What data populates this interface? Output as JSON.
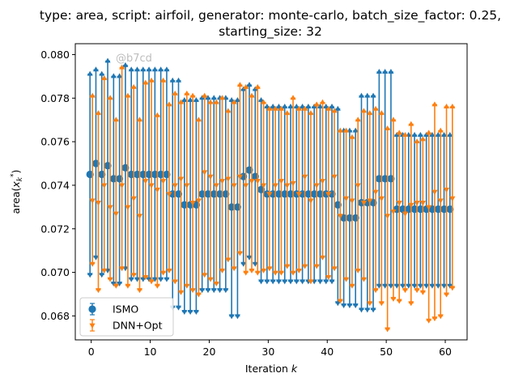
{
  "chart_data": {
    "type": "scatter",
    "title_line1": "type: area, script: airfoil, generator: monte-carlo, batch_size_factor: 0.25,",
    "title_line2": "starting_size: 32",
    "xlabel": "Iteration k",
    "ylabel": "area(x_k^*)",
    "xlim": [
      -2.7,
      63.7
    ],
    "ylim": [
      0.0669,
      0.0805
    ],
    "xticks": [
      0,
      10,
      20,
      30,
      40,
      50,
      60
    ],
    "yticks": [
      0.068,
      0.07,
      0.072,
      0.074,
      0.076,
      0.078,
      0.08
    ],
    "ytick_labels": [
      "0.068",
      "0.070",
      "0.072",
      "0.074",
      "0.076",
      "0.078",
      "0.080"
    ],
    "legend_position": "lower-left",
    "watermark": "@b7cd",
    "series": [
      {
        "name": "ISMO",
        "color": "#1f77b4",
        "marker": "circle",
        "x": [
          0,
          1,
          2,
          3,
          4,
          5,
          6,
          7,
          8,
          9,
          10,
          11,
          12,
          13,
          14,
          15,
          16,
          17,
          18,
          19,
          20,
          21,
          22,
          23,
          24,
          25,
          26,
          27,
          28,
          29,
          30,
          31,
          32,
          33,
          34,
          35,
          36,
          37,
          38,
          39,
          40,
          41,
          42,
          43,
          44,
          45,
          46,
          47,
          48,
          49,
          50,
          51,
          52,
          53,
          54,
          55,
          56,
          57,
          58,
          59,
          60,
          61
        ],
        "y": [
          0.0745,
          0.075,
          0.0745,
          0.0749,
          0.0743,
          0.0743,
          0.0748,
          0.0745,
          0.0745,
          0.0745,
          0.0745,
          0.0745,
          0.0745,
          0.0745,
          0.0736,
          0.0736,
          0.0731,
          0.0731,
          0.0731,
          0.0736,
          0.0736,
          0.0736,
          0.0736,
          0.0736,
          0.073,
          0.073,
          0.0744,
          0.0747,
          0.0744,
          0.0738,
          0.0736,
          0.0736,
          0.0736,
          0.0736,
          0.0736,
          0.0736,
          0.0736,
          0.0736,
          0.0736,
          0.0736,
          0.0736,
          0.0736,
          0.0731,
          0.0725,
          0.0725,
          0.0725,
          0.0732,
          0.0732,
          0.0732,
          0.0743,
          0.0743,
          0.0743,
          0.0729,
          0.0729,
          0.0729,
          0.0729,
          0.0729,
          0.0729,
          0.0729,
          0.0729,
          0.0729,
          0.0729
        ],
        "upper": [
          0.0791,
          0.0793,
          0.0791,
          0.0797,
          0.079,
          0.079,
          0.0795,
          0.0793,
          0.0793,
          0.0793,
          0.0793,
          0.0793,
          0.0793,
          0.0793,
          0.0788,
          0.0788,
          0.0779,
          0.0779,
          0.0779,
          0.078,
          0.078,
          0.078,
          0.078,
          0.078,
          0.0779,
          0.0779,
          0.0784,
          0.0786,
          0.0784,
          0.0779,
          0.0776,
          0.0776,
          0.0776,
          0.0776,
          0.0776,
          0.0776,
          0.0776,
          0.0776,
          0.0776,
          0.0776,
          0.0776,
          0.0776,
          0.0775,
          0.0765,
          0.0765,
          0.0765,
          0.0781,
          0.0781,
          0.0781,
          0.0792,
          0.0792,
          0.0792,
          0.0763,
          0.0763,
          0.0763,
          0.0763,
          0.0763,
          0.0763,
          0.0763,
          0.0763,
          0.0763,
          0.0763
        ],
        "lower": [
          0.0699,
          0.0707,
          0.0699,
          0.0701,
          0.0695,
          0.0695,
          0.0702,
          0.0697,
          0.0697,
          0.0697,
          0.0697,
          0.0697,
          0.0697,
          0.0697,
          0.0684,
          0.0684,
          0.0682,
          0.0682,
          0.0682,
          0.0692,
          0.0692,
          0.0692,
          0.0692,
          0.0692,
          0.068,
          0.068,
          0.0704,
          0.0707,
          0.0704,
          0.0696,
          0.0696,
          0.0696,
          0.0696,
          0.0696,
          0.0696,
          0.0696,
          0.0696,
          0.0696,
          0.0696,
          0.0696,
          0.0696,
          0.0696,
          0.0686,
          0.0685,
          0.0685,
          0.0685,
          0.0683,
          0.0683,
          0.0683,
          0.0694,
          0.0694,
          0.0694,
          0.0694,
          0.0694,
          0.0694,
          0.0694,
          0.0694,
          0.0694,
          0.0694,
          0.0694,
          0.0694,
          0.0694
        ]
      },
      {
        "name": "DNN+Opt",
        "color": "#ff7f0e",
        "marker": "triangle-down",
        "x": [
          0,
          1,
          2,
          3,
          4,
          5,
          6,
          7,
          8,
          9,
          10,
          11,
          12,
          13,
          14,
          15,
          16,
          17,
          18,
          19,
          20,
          21,
          22,
          23,
          24,
          25,
          26,
          27,
          28,
          29,
          30,
          31,
          32,
          33,
          34,
          35,
          36,
          37,
          38,
          39,
          40,
          41,
          42,
          43,
          44,
          45,
          46,
          47,
          48,
          49,
          50,
          51,
          52,
          53,
          54,
          55,
          56,
          57,
          58,
          59,
          60,
          61
        ],
        "y": [
          0.0733,
          0.0732,
          0.074,
          0.073,
          0.0727,
          0.074,
          0.073,
          0.0734,
          0.0726,
          0.0742,
          0.074,
          0.0738,
          0.0742,
          0.0736,
          0.074,
          0.0743,
          0.074,
          0.0732,
          0.0733,
          0.0746,
          0.0744,
          0.074,
          0.0742,
          0.0743,
          0.074,
          0.0744,
          0.074,
          0.0742,
          0.0742,
          0.074,
          0.0736,
          0.074,
          0.0742,
          0.074,
          0.0741,
          0.0736,
          0.0744,
          0.0733,
          0.074,
          0.0742,
          0.0736,
          0.0744,
          0.0726,
          0.0734,
          0.0733,
          0.074,
          0.0732,
          0.0733,
          0.0737,
          0.0734,
          0.0726,
          0.0728,
          0.0732,
          0.0727,
          0.0731,
          0.0732,
          0.0732,
          0.073,
          0.0737,
          0.0733,
          0.0738,
          0.0734
        ],
        "upper": [
          0.0781,
          0.0773,
          0.0789,
          0.078,
          0.077,
          0.0794,
          0.0781,
          0.0785,
          0.077,
          0.0787,
          0.0788,
          0.0772,
          0.0788,
          0.0777,
          0.0782,
          0.0778,
          0.0782,
          0.0781,
          0.077,
          0.0781,
          0.0778,
          0.0778,
          0.078,
          0.0774,
          0.0778,
          0.0786,
          0.0785,
          0.0781,
          0.0785,
          0.0778,
          0.0775,
          0.0775,
          0.0775,
          0.0773,
          0.078,
          0.0775,
          0.0775,
          0.0773,
          0.0777,
          0.0778,
          0.0775,
          0.0774,
          0.0765,
          0.0765,
          0.0762,
          0.077,
          0.0774,
          0.0773,
          0.0775,
          0.0773,
          0.0766,
          0.077,
          0.0764,
          0.0763,
          0.0768,
          0.076,
          0.0761,
          0.0764,
          0.0777,
          0.0765,
          0.0776,
          0.0776
        ],
        "lower": [
          0.0704,
          0.0692,
          0.0701,
          0.0697,
          0.0694,
          0.0702,
          0.0694,
          0.0699,
          0.0692,
          0.0698,
          0.0696,
          0.0694,
          0.07,
          0.0701,
          0.0696,
          0.0691,
          0.0694,
          0.0692,
          0.069,
          0.0699,
          0.0697,
          0.0695,
          0.0701,
          0.0706,
          0.0702,
          0.0709,
          0.07,
          0.0701,
          0.07,
          0.0701,
          0.0702,
          0.07,
          0.07,
          0.0703,
          0.07,
          0.0701,
          0.0703,
          0.0696,
          0.0703,
          0.0707,
          0.0698,
          0.0702,
          0.0687,
          0.0697,
          0.0694,
          0.0701,
          0.0697,
          0.0686,
          0.0692,
          0.0686,
          0.0674,
          0.0688,
          0.0687,
          0.0692,
          0.0686,
          0.0692,
          0.0691,
          0.0678,
          0.0679,
          0.068,
          0.069,
          0.0693
        ]
      }
    ]
  }
}
